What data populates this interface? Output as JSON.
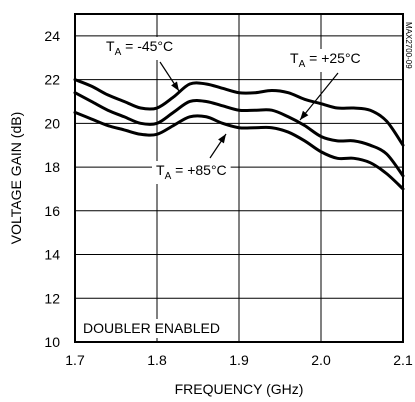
{
  "chart_data": {
    "type": "line",
    "title": "",
    "xlabel": "FREQUENCY (GHz)",
    "ylabel": "VOLTAGE GAIN (dB)",
    "xlim": [
      1.7,
      2.1
    ],
    "ylim": [
      10,
      25
    ],
    "xticks": [
      "1.7",
      "1.8",
      "1.9",
      "2.0",
      "2.1"
    ],
    "yticks": [
      "10",
      "12",
      "14",
      "16",
      "18",
      "20",
      "22",
      "24"
    ],
    "xtick_values": [
      1.7,
      1.8,
      1.9,
      2.0,
      2.1
    ],
    "ytick_values": [
      10,
      12,
      14,
      16,
      18,
      20,
      22,
      24
    ],
    "grid": true,
    "series": [
      {
        "name": "TA = -45°C",
        "x": [
          1.7,
          1.72,
          1.74,
          1.76,
          1.78,
          1.8,
          1.82,
          1.84,
          1.86,
          1.88,
          1.9,
          1.92,
          1.94,
          1.96,
          1.98,
          2.0,
          2.02,
          2.04,
          2.06,
          2.08,
          2.1
        ],
        "y": [
          22.0,
          21.7,
          21.3,
          21.0,
          20.7,
          20.7,
          21.2,
          21.8,
          21.8,
          21.6,
          21.4,
          21.4,
          21.5,
          21.4,
          21.1,
          20.9,
          20.7,
          20.7,
          20.6,
          20.1,
          19.0
        ]
      },
      {
        "name": "TA = +25°C",
        "x": [
          1.7,
          1.72,
          1.74,
          1.76,
          1.78,
          1.8,
          1.82,
          1.84,
          1.86,
          1.88,
          1.9,
          1.92,
          1.94,
          1.96,
          1.98,
          2.0,
          2.02,
          2.04,
          2.06,
          2.08,
          2.1
        ],
        "y": [
          21.4,
          21.0,
          20.6,
          20.3,
          20.0,
          20.0,
          20.5,
          21.0,
          21.0,
          20.8,
          20.6,
          20.6,
          20.6,
          20.3,
          19.9,
          19.4,
          19.2,
          19.2,
          19.0,
          18.6,
          17.6
        ]
      },
      {
        "name": "TA = +85°C",
        "x": [
          1.7,
          1.72,
          1.74,
          1.76,
          1.78,
          1.8,
          1.82,
          1.84,
          1.86,
          1.88,
          1.9,
          1.92,
          1.94,
          1.96,
          1.98,
          2.0,
          2.02,
          2.04,
          2.06,
          2.08,
          2.1
        ],
        "y": [
          20.5,
          20.2,
          19.9,
          19.7,
          19.5,
          19.5,
          19.9,
          20.3,
          20.3,
          20.0,
          19.8,
          19.8,
          19.8,
          19.6,
          19.2,
          18.7,
          18.4,
          18.4,
          18.2,
          17.7,
          17.0
        ]
      }
    ],
    "annotations": [
      {
        "prefix": "T",
        "sub": "A",
        "rest": " = -45°C"
      },
      {
        "prefix": "T",
        "sub": "A",
        "rest": " = +25°C"
      },
      {
        "prefix": "T",
        "sub": "A",
        "rest": " = +85°C"
      }
    ],
    "note": "DOUBLER ENABLED",
    "figure_code": "MAX2700-09",
    "line_color": "#000000"
  }
}
